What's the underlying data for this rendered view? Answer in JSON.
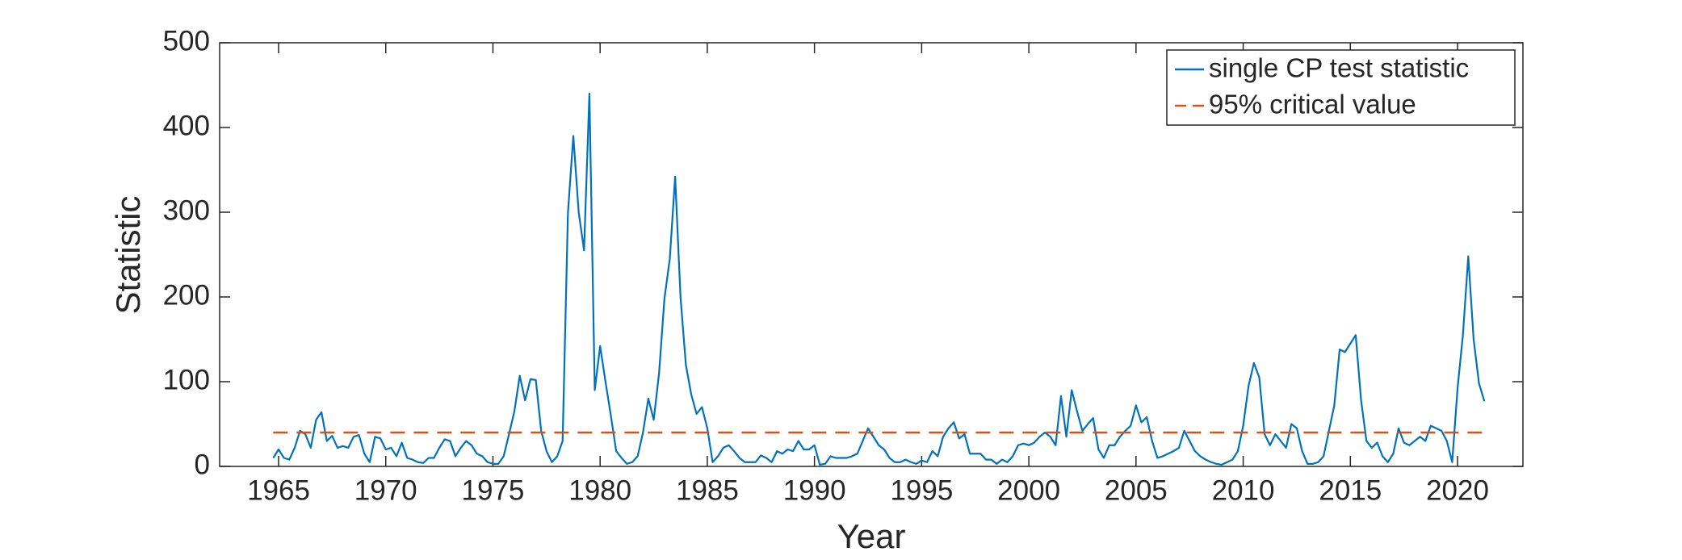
{
  "chart_data": {
    "type": "line",
    "xlabel": "Year",
    "ylabel": "Statistic",
    "xlim": [
      1962.25,
      2023.05
    ],
    "ylim": [
      0,
      500
    ],
    "xticks": [
      1965,
      1970,
      1975,
      1980,
      1985,
      1990,
      1995,
      2000,
      2005,
      2010,
      2015,
      2020
    ],
    "yticks": [
      0,
      100,
      200,
      300,
      400,
      500
    ],
    "legend": "upper right",
    "series": [
      {
        "name": "single CP test statistic",
        "color": "#0072bd",
        "dash": false,
        "x": [
          1964.75,
          1965,
          1965.25,
          1965.5,
          1965.75,
          1966,
          1966.25,
          1966.5,
          1966.75,
          1967,
          1967.25,
          1967.5,
          1967.75,
          1968,
          1968.25,
          1968.5,
          1968.75,
          1969,
          1969.25,
          1969.5,
          1969.75,
          1970,
          1970.25,
          1970.5,
          1970.75,
          1971,
          1971.25,
          1971.5,
          1971.75,
          1972,
          1972.25,
          1972.5,
          1972.75,
          1973,
          1973.25,
          1973.5,
          1973.75,
          1974,
          1974.25,
          1974.5,
          1974.75,
          1975,
          1975.25,
          1975.5,
          1975.75,
          1976,
          1976.25,
          1976.5,
          1976.75,
          1977,
          1977.25,
          1977.5,
          1977.75,
          1978,
          1978.25,
          1978.5,
          1978.75,
          1979,
          1979.25,
          1979.5,
          1979.75,
          1980,
          1980.25,
          1980.5,
          1980.75,
          1981,
          1981.25,
          1981.5,
          1981.75,
          1982,
          1982.25,
          1982.5,
          1982.75,
          1983,
          1983.25,
          1983.5,
          1983.75,
          1984,
          1984.25,
          1984.5,
          1984.75,
          1985,
          1985.25,
          1985.5,
          1985.75,
          1986,
          1986.25,
          1986.5,
          1986.75,
          1987,
          1987.25,
          1987.5,
          1987.75,
          1988,
          1988.25,
          1988.5,
          1988.75,
          1989,
          1989.25,
          1989.5,
          1989.75,
          1990,
          1990.25,
          1990.5,
          1990.75,
          1991,
          1991.25,
          1991.5,
          1991.75,
          1992,
          1992.25,
          1992.5,
          1992.75,
          1993,
          1993.25,
          1993.5,
          1993.75,
          1994,
          1994.25,
          1994.5,
          1994.75,
          1995,
          1995.25,
          1995.5,
          1995.75,
          1996,
          1996.25,
          1996.5,
          1996.75,
          1997,
          1997.25,
          1997.5,
          1997.75,
          1998,
          1998.25,
          1998.5,
          1998.75,
          1999,
          1999.25,
          1999.5,
          1999.75,
          2000,
          2000.25,
          2000.5,
          2000.75,
          2001,
          2001.25,
          2001.5,
          2001.75,
          2002,
          2002.25,
          2002.5,
          2002.75,
          2003,
          2003.25,
          2003.5,
          2003.75,
          2004,
          2004.25,
          2004.5,
          2004.75,
          2005,
          2005.25,
          2005.5,
          2005.75,
          2006,
          2006.25,
          2006.5,
          2006.75,
          2007,
          2007.25,
          2007.5,
          2007.75,
          2008,
          2008.25,
          2008.5,
          2008.75,
          2009,
          2009.25,
          2009.5,
          2009.75,
          2010,
          2010.25,
          2010.5,
          2010.75,
          2011,
          2011.25,
          2011.5,
          2011.75,
          2012,
          2012.25,
          2012.5,
          2012.75,
          2013,
          2013.25,
          2013.5,
          2013.75,
          2014,
          2014.25,
          2014.5,
          2014.75,
          2015,
          2015.25,
          2015.5,
          2015.75,
          2016,
          2016.25,
          2016.5,
          2016.75,
          2017,
          2017.25,
          2017.5,
          2017.75,
          2018,
          2018.25,
          2018.5,
          2018.75,
          2019,
          2019.25,
          2019.5,
          2019.75,
          2020,
          2020.25,
          2020.5,
          2020.75,
          2021,
          2021.25
        ],
        "values": [
          10,
          20,
          10,
          8,
          22,
          42,
          38,
          22,
          55,
          64,
          30,
          36,
          22,
          24,
          22,
          35,
          37,
          15,
          5,
          35,
          33,
          20,
          22,
          12,
          28,
          10,
          8,
          5,
          4,
          10,
          10,
          22,
          32,
          30,
          12,
          22,
          30,
          25,
          15,
          12,
          5,
          3,
          3,
          12,
          38,
          65,
          107,
          78,
          103,
          102,
          42,
          18,
          5,
          12,
          30,
          300,
          390,
          300,
          255,
          440,
          90,
          142,
          100,
          60,
          18,
          10,
          3,
          5,
          12,
          40,
          80,
          55,
          110,
          198,
          245,
          342,
          200,
          120,
          85,
          62,
          70,
          45,
          5,
          12,
          22,
          25,
          18,
          10,
          5,
          5,
          5,
          13,
          10,
          5,
          18,
          15,
          20,
          18,
          30,
          20,
          20,
          25,
          2,
          3,
          12,
          10,
          10,
          10,
          12,
          15,
          30,
          45,
          35,
          25,
          20,
          10,
          5,
          5,
          8,
          5,
          3,
          7,
          5,
          18,
          12,
          35,
          45,
          52,
          33,
          38,
          15,
          15,
          15,
          8,
          8,
          3,
          8,
          5,
          12,
          25,
          27,
          25,
          28,
          35,
          40,
          35,
          25,
          83,
          35,
          90,
          65,
          42,
          50,
          57,
          20,
          10,
          25,
          25,
          35,
          42,
          48,
          72,
          52,
          58,
          30,
          10,
          12,
          15,
          18,
          22,
          42,
          30,
          18,
          12,
          8,
          5,
          3,
          2,
          5,
          8,
          18,
          48,
          95,
          122,
          105,
          38,
          25,
          38,
          30,
          22,
          50,
          45,
          18,
          3,
          3,
          5,
          12,
          42,
          72,
          138,
          135,
          145,
          155,
          78,
          30,
          22,
          28,
          12,
          5,
          15,
          45,
          28,
          25,
          30,
          35,
          30,
          48,
          45,
          42,
          30,
          5,
          92,
          155,
          248,
          150,
          98,
          77
        ]
      },
      {
        "name": "95% critical value",
        "color": "#d95319",
        "dash": true,
        "x": [
          1964.75,
          2021.25
        ],
        "values": [
          40,
          40
        ]
      }
    ]
  }
}
